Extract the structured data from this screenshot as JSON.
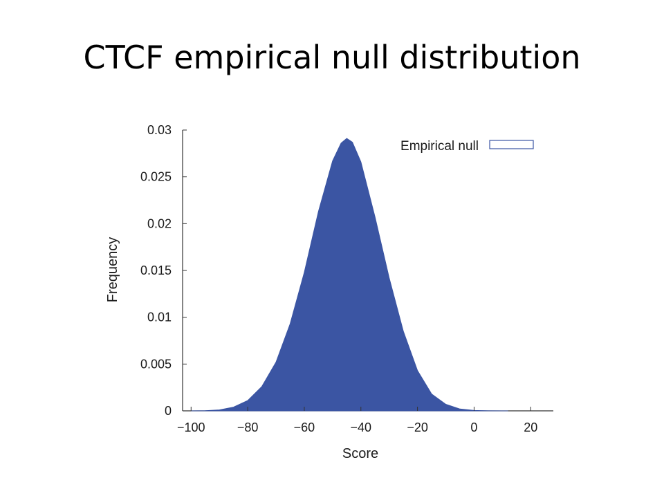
{
  "slide": {
    "title": "CTCF empirical null distribution"
  },
  "chart_data": {
    "type": "area",
    "title": "",
    "xlabel": "Score",
    "ylabel": "Frequency",
    "xlim": [
      -103,
      28
    ],
    "ylim": [
      0,
      0.03
    ],
    "x_ticks": [
      -100,
      -80,
      -60,
      -40,
      -20,
      0,
      20
    ],
    "x_tick_labels": [
      "−100",
      "−80",
      "−60",
      "−40",
      "−20",
      "0",
      "20"
    ],
    "y_ticks": [
      0,
      0.005,
      0.01,
      0.015,
      0.02,
      0.025,
      0.03
    ],
    "y_tick_labels": [
      "0",
      "0.005",
      "0.01",
      "0.015",
      "0.02",
      "0.025",
      "0.03"
    ],
    "grid": false,
    "legend_position": "top-right",
    "fill_color": "#3b55a3",
    "series": [
      {
        "name": "Empirical null",
        "x": [
          -100,
          -95,
          -90,
          -85,
          -80,
          -75,
          -70,
          -65,
          -60,
          -55,
          -50,
          -47,
          -45,
          -43,
          -40,
          -35,
          -30,
          -25,
          -20,
          -15,
          -10,
          -5,
          0,
          5,
          10,
          12
        ],
        "y": [
          0.0,
          2e-05,
          0.0001,
          0.0004,
          0.0011,
          0.0026,
          0.0052,
          0.0093,
          0.0148,
          0.0213,
          0.0267,
          0.0286,
          0.0291,
          0.0287,
          0.0266,
          0.0207,
          0.0142,
          0.0085,
          0.0043,
          0.0018,
          0.0007,
          0.0002,
          5e-05,
          1e-05,
          3e-06,
          0.0
        ]
      }
    ]
  }
}
